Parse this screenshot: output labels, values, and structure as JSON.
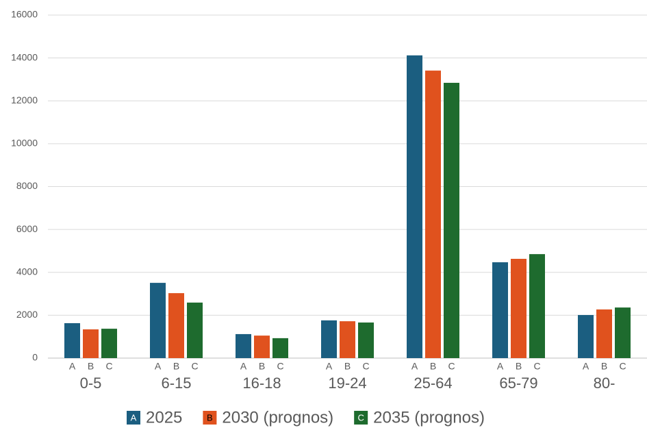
{
  "chart_data": {
    "type": "bar",
    "categories": [
      "0-5",
      "6-15",
      "16-18",
      "19-24",
      "25-64",
      "65-79",
      "80-"
    ],
    "series": [
      {
        "name": "2025",
        "label": "A",
        "color": "#1b5e80",
        "values": [
          1630,
          3510,
          1120,
          1760,
          14120,
          4470,
          2010
        ]
      },
      {
        "name": "2030 (prognos)",
        "label": "B",
        "color": "#e0521e",
        "values": [
          1340,
          3030,
          1050,
          1720,
          13410,
          4630,
          2270
        ]
      },
      {
        "name": "2035 (prognos)",
        "label": "C",
        "color": "#1e6b2e",
        "values": [
          1370,
          2590,
          930,
          1660,
          12840,
          4850,
          2360
        ]
      }
    ],
    "ylim": [
      0,
      16000
    ],
    "yticks": [
      0,
      2000,
      4000,
      6000,
      8000,
      10000,
      12000,
      14000,
      16000
    ],
    "grid": true,
    "legend": "bottom"
  }
}
